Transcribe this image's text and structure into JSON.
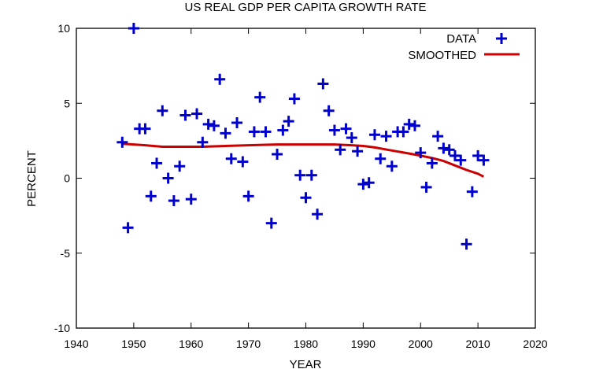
{
  "chart_data": {
    "type": "scatter",
    "title": "US REAL GDP PER CAPITA GROWTH RATE",
    "xlabel": "YEAR",
    "ylabel": "PERCENT",
    "xlim": [
      1940,
      2020
    ],
    "ylim": [
      -10,
      10
    ],
    "xticks": [
      1940,
      1950,
      1960,
      1970,
      1980,
      1990,
      2000,
      2010,
      2020
    ],
    "yticks": [
      -10,
      -5,
      0,
      5,
      10
    ],
    "xtick_labels": [
      "1940",
      "1950",
      "1960",
      "1970",
      "1980",
      "1990",
      "2000",
      "2010",
      "2020"
    ],
    "ytick_labels": [
      "-10",
      "-5",
      "0",
      "5",
      "10"
    ],
    "grid": false,
    "legend_position": "top-right",
    "series": [
      {
        "name": "DATA",
        "kind": "scatter",
        "marker": "plus",
        "color": "#0000cc",
        "x": [
          1948,
          1949,
          1950,
          1951,
          1952,
          1953,
          1954,
          1955,
          1956,
          1957,
          1958,
          1959,
          1960,
          1961,
          1962,
          1963,
          1964,
          1965,
          1966,
          1967,
          1968,
          1969,
          1970,
          1971,
          1972,
          1973,
          1974,
          1975,
          1976,
          1977,
          1978,
          1979,
          1980,
          1981,
          1982,
          1983,
          1984,
          1985,
          1986,
          1987,
          1988,
          1989,
          1990,
          1991,
          1992,
          1993,
          1994,
          1995,
          1996,
          1997,
          1998,
          1999,
          2000,
          2001,
          2002,
          2003,
          2004,
          2005,
          2006,
          2007,
          2008,
          2009,
          2010,
          2011
        ],
        "y": [
          2.4,
          -3.3,
          10.0,
          3.3,
          3.3,
          -1.2,
          1.0,
          4.5,
          0.0,
          -1.5,
          0.8,
          4.2,
          -1.4,
          4.3,
          2.4,
          3.6,
          3.5,
          6.6,
          3.0,
          1.3,
          3.7,
          1.1,
          -1.2,
          3.1,
          5.4,
          3.1,
          -3.0,
          1.6,
          3.2,
          3.8,
          5.3,
          0.2,
          -1.3,
          0.2,
          -2.4,
          6.3,
          4.5,
          3.2,
          1.9,
          3.3,
          2.7,
          1.8,
          -0.4,
          -0.3,
          2.9,
          1.3,
          2.8,
          0.8,
          3.1,
          3.1,
          3.6,
          3.5,
          1.7,
          -0.6,
          1.0,
          2.8,
          2.0,
          1.9,
          1.5,
          1.2,
          -4.4,
          -0.9,
          1.5,
          1.2
        ]
      },
      {
        "name": "SMOOTHED",
        "kind": "line",
        "color": "#cc0000",
        "x": [
          1948,
          1950,
          1952,
          1955,
          1958,
          1962,
          1966,
          1970,
          1975,
          1980,
          1985,
          1988,
          1990,
          1992,
          1995,
          1998,
          2000,
          2002,
          2004,
          2006,
          2008,
          2010,
          2011
        ],
        "y": [
          2.3,
          2.25,
          2.2,
          2.1,
          2.1,
          2.1,
          2.15,
          2.2,
          2.25,
          2.25,
          2.25,
          2.2,
          2.15,
          2.05,
          1.85,
          1.65,
          1.5,
          1.35,
          1.15,
          0.85,
          0.55,
          0.3,
          0.1
        ]
      }
    ]
  }
}
